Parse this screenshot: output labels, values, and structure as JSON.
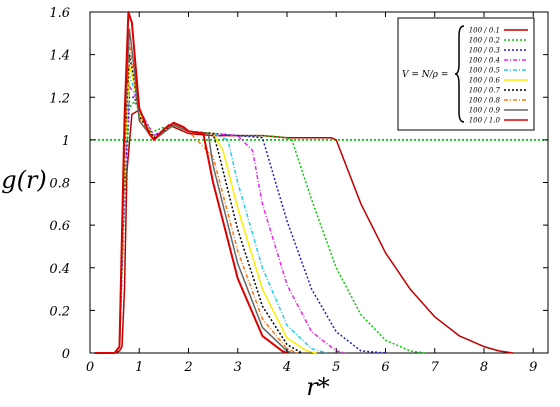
{
  "chart_data": {
    "type": "line",
    "xlabel": "r*",
    "ylabel": "g(r)",
    "xlim": [
      0,
      9.3
    ],
    "ylim": [
      0,
      1.6
    ],
    "xticks": [
      "0",
      "1",
      "2",
      "3",
      "4",
      "5",
      "6",
      "7",
      "8",
      "9"
    ],
    "yticks": [
      "0",
      "0.2",
      "0.4",
      "0.6",
      "0.8",
      "1",
      "1.2",
      "1.4",
      "1.6"
    ],
    "legend": {
      "placement": "top-right",
      "prefix": "V = N/ρ ="
    },
    "reference_line": {
      "y": 1,
      "color": "#00cc00",
      "style": "dotted"
    },
    "series": [
      {
        "name": "100 / 0.1",
        "color": "#c00000",
        "style": "solid",
        "x": [
          0.1,
          0.5,
          0.6,
          0.65,
          0.7,
          0.75,
          0.85,
          1.0,
          1.1,
          1.2,
          1.3,
          1.4,
          1.5,
          1.6,
          1.7,
          1.8,
          1.9,
          2.0,
          2.5,
          3.0,
          3.5,
          4.0,
          4.5,
          4.9,
          5.0,
          5.5,
          6.0,
          6.5,
          7.0,
          7.5,
          8.0,
          8.3,
          8.6
        ],
        "y": [
          0,
          0,
          0.01,
          0.03,
          0.3,
          0.85,
          1.12,
          1.14,
          1.1,
          1.03,
          1.01,
          1.02,
          1.05,
          1.07,
          1.06,
          1.05,
          1.04,
          1.03,
          1.02,
          1.02,
          1.02,
          1.01,
          1.01,
          1.01,
          1.0,
          0.7,
          0.47,
          0.3,
          0.17,
          0.08,
          0.03,
          0.01,
          0
        ]
      },
      {
        "name": "100 / 0.2",
        "color": "#00cc00",
        "style": "dotted",
        "x": [
          0.1,
          0.5,
          0.6,
          0.7,
          0.8,
          0.9,
          1.0,
          1.2,
          1.5,
          1.7,
          2.0,
          2.5,
          3.0,
          3.5,
          4.0,
          4.1,
          4.5,
          5.0,
          5.5,
          6.0,
          6.5,
          6.8
        ],
        "y": [
          0,
          0,
          0.03,
          0.7,
          1.15,
          1.18,
          1.14,
          1.03,
          1.06,
          1.07,
          1.04,
          1.03,
          1.02,
          1.02,
          1.01,
          1.0,
          0.72,
          0.4,
          0.18,
          0.06,
          0.01,
          0
        ]
      },
      {
        "name": "100 / 0.3",
        "color": "#1f1fc8",
        "style": "dotted",
        "x": [
          0.1,
          0.5,
          0.6,
          0.7,
          0.8,
          0.9,
          1.0,
          1.3,
          1.7,
          2.0,
          2.5,
          3.0,
          3.5,
          4.0,
          4.5,
          5.0,
          5.5,
          6.0
        ],
        "y": [
          0,
          0,
          0.03,
          0.75,
          1.2,
          1.2,
          1.14,
          1.02,
          1.07,
          1.04,
          1.03,
          1.02,
          1.01,
          0.62,
          0.3,
          0.1,
          0.01,
          0
        ]
      },
      {
        "name": "100 / 0.4",
        "color": "#ee22ee",
        "style": "dashdot",
        "x": [
          0.1,
          0.5,
          0.6,
          0.7,
          0.8,
          0.9,
          1.0,
          1.3,
          1.7,
          2.0,
          2.5,
          3.0,
          3.3,
          3.5,
          4.0,
          4.5,
          5.0,
          5.2
        ],
        "y": [
          0,
          0,
          0.03,
          0.8,
          1.25,
          1.22,
          1.14,
          1.02,
          1.07,
          1.04,
          1.03,
          1.02,
          0.95,
          0.7,
          0.32,
          0.1,
          0.01,
          0
        ]
      },
      {
        "name": "100 / 0.5",
        "color": "#22ccee",
        "style": "dashdot",
        "x": [
          0.1,
          0.5,
          0.6,
          0.7,
          0.8,
          0.9,
          1.0,
          1.3,
          1.7,
          2.0,
          2.5,
          2.8,
          3.0,
          3.5,
          4.0,
          4.5,
          4.8
        ],
        "y": [
          0,
          0,
          0.03,
          0.85,
          1.3,
          1.24,
          1.13,
          1.01,
          1.07,
          1.04,
          1.03,
          1.0,
          0.8,
          0.4,
          0.13,
          0.02,
          0
        ]
      },
      {
        "name": "100 / 0.6",
        "color": "#ffee00",
        "style": "solid",
        "x": [
          0.1,
          0.5,
          0.6,
          0.7,
          0.8,
          0.9,
          1.0,
          1.3,
          1.7,
          2.0,
          2.5,
          2.7,
          3.0,
          3.5,
          4.0,
          4.4,
          4.6
        ],
        "y": [
          0,
          0,
          0.03,
          0.9,
          1.35,
          1.26,
          1.12,
          1.01,
          1.07,
          1.04,
          1.03,
          0.95,
          0.68,
          0.3,
          0.07,
          0.01,
          0
        ]
      },
      {
        "name": "100 / 0.7",
        "color": "#000000",
        "style": "dotted",
        "x": [
          0.1,
          0.5,
          0.6,
          0.7,
          0.8,
          0.9,
          1.0,
          1.3,
          1.7,
          2.0,
          2.5,
          2.6,
          3.0,
          3.5,
          4.0,
          4.3
        ],
        "y": [
          0,
          0,
          0.03,
          0.95,
          1.4,
          1.28,
          1.11,
          1.01,
          1.07,
          1.04,
          1.03,
          0.95,
          0.58,
          0.22,
          0.04,
          0
        ]
      },
      {
        "name": "100 / 0.8",
        "color": "#ff7711",
        "style": "dashdot",
        "x": [
          0.1,
          0.5,
          0.6,
          0.7,
          0.8,
          0.9,
          1.0,
          1.3,
          1.7,
          2.0,
          2.5,
          3.0,
          3.5,
          4.0,
          4.2
        ],
        "y": [
          0,
          0,
          0.03,
          1.0,
          1.45,
          1.3,
          1.1,
          1.0,
          1.07,
          1.04,
          0.92,
          0.48,
          0.16,
          0.02,
          0
        ]
      },
      {
        "name": "100 / 0.9",
        "color": "#666666",
        "style": "solid",
        "x": [
          0.1,
          0.5,
          0.6,
          0.7,
          0.8,
          0.9,
          1.0,
          1.3,
          1.7,
          2.0,
          2.4,
          2.5,
          3.0,
          3.5,
          4.0,
          4.1
        ],
        "y": [
          0,
          0,
          0.03,
          1.05,
          1.52,
          1.33,
          1.09,
          1.0,
          1.07,
          1.04,
          1.03,
          0.88,
          0.42,
          0.12,
          0.01,
          0
        ]
      },
      {
        "name": "100 / 1.0",
        "color": "#dd0000",
        "style": "solid",
        "x": [
          0.1,
          0.5,
          0.6,
          0.7,
          0.78,
          0.85,
          1.0,
          1.2,
          1.3,
          1.5,
          1.7,
          1.9,
          2.0,
          2.3,
          2.5,
          3.0,
          3.5,
          3.9,
          4.0
        ],
        "y": [
          0,
          0,
          0.03,
          1.1,
          1.6,
          1.55,
          1.15,
          1.03,
          1.0,
          1.05,
          1.08,
          1.06,
          1.04,
          1.03,
          0.8,
          0.35,
          0.08,
          0.01,
          0
        ]
      }
    ]
  }
}
